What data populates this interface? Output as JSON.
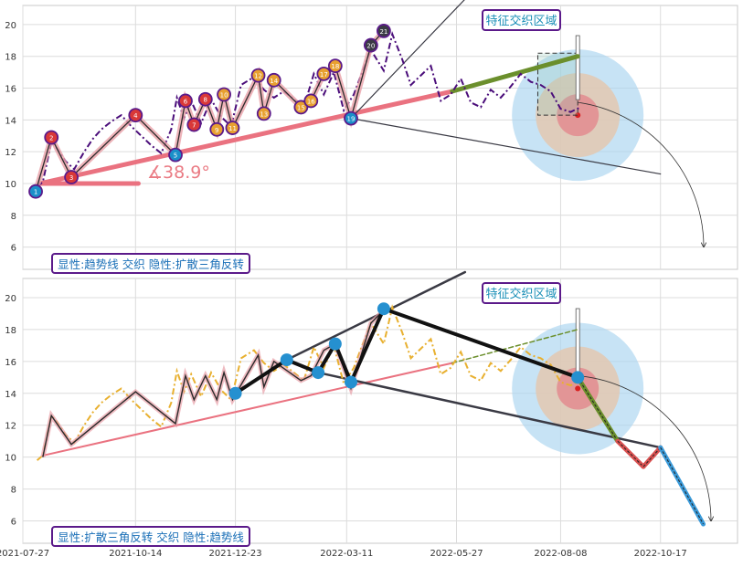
{
  "chart_data": [
    {
      "type": "line",
      "panel": "top",
      "xlim": [
        "2021-07-27",
        "2022-12-10"
      ],
      "ylim": [
        4.6,
        21.2
      ],
      "yticks": [
        6,
        8,
        10,
        12,
        14,
        16,
        18,
        20
      ],
      "grid": true,
      "zone_label": "特征交织区域",
      "pattern_label": "显性:趋势线 交织 隐性:扩散三角反转",
      "angle_label": "∡38.9°",
      "series": [
        {
          "kind": "price",
          "x": [
            "2021-08-06",
            "2021-08-10",
            "2021-08-16",
            "2021-08-20",
            "2021-08-26",
            "2021-09-01",
            "2021-09-08",
            "2021-09-14",
            "2021-09-20",
            "2021-09-27",
            "2021-10-04",
            "2021-10-11",
            "2021-10-18",
            "2021-10-25",
            "2021-11-01",
            "2021-11-08",
            "2021-11-12",
            "2021-11-17",
            "2021-11-22",
            "2021-11-29",
            "2021-12-06",
            "2021-12-13",
            "2021-12-20",
            "2021-12-27",
            "2022-01-05",
            "2022-01-12",
            "2022-01-19",
            "2022-01-26",
            "2022-02-09",
            "2022-02-16",
            "2022-02-23",
            "2022-03-02",
            "2022-03-09",
            "2022-03-16",
            "2022-03-21",
            "2022-03-28",
            "2022-04-06",
            "2022-04-12",
            "2022-04-19",
            "2022-04-25",
            "2022-05-02",
            "2022-05-09",
            "2022-05-16",
            "2022-05-23",
            "2022-05-30",
            "2022-06-06",
            "2022-06-13",
            "2022-06-20",
            "2022-06-27",
            "2022-07-04",
            "2022-07-11",
            "2022-07-18",
            "2022-07-25",
            "2022-08-01",
            "2022-08-08",
            "2022-08-15",
            "2022-08-22"
          ],
          "y": [
            9.8,
            10.1,
            12.6,
            12.2,
            11.4,
            10.9,
            12.0,
            12.8,
            13.4,
            13.9,
            14.3,
            13.6,
            13.0,
            12.4,
            11.9,
            13.4,
            15.4,
            14.1,
            15.2,
            13.8,
            15.3,
            14.2,
            13.6,
            16.2,
            16.7,
            15.9,
            15.4,
            15.8,
            14.8,
            16.9,
            15.6,
            17.0,
            14.6,
            15.6,
            16.8,
            18.4,
            17.1,
            19.4,
            17.8,
            16.2,
            16.8,
            17.4,
            15.2,
            15.6,
            16.6,
            15.1,
            14.8,
            15.9,
            15.4,
            16.1,
            16.9,
            16.4,
            16.2,
            15.8,
            14.7,
            14.5,
            14.8
          ]
        },
        {
          "kind": "pivots",
          "x": [
            "2021-08-05",
            "2021-08-16",
            "2021-08-30",
            "2021-10-14",
            "2021-11-11",
            "2021-11-18",
            "2021-11-24",
            "2021-12-02",
            "2021-12-10",
            "2021-12-15",
            "2021-12-21",
            "2022-01-08",
            "2022-01-12",
            "2022-01-19",
            "2022-02-07",
            "2022-02-14",
            "2022-02-23",
            "2022-03-03",
            "2022-03-14",
            "2022-03-28",
            "2022-04-06"
          ],
          "y": [
            9.5,
            12.9,
            10.4,
            14.3,
            11.8,
            15.2,
            13.7,
            15.3,
            13.4,
            15.6,
            13.5,
            16.8,
            14.4,
            16.5,
            14.8,
            15.2,
            16.9,
            17.4,
            14.1,
            18.7,
            19.6
          ],
          "labels": [
            "1",
            "2",
            "3",
            "4",
            "5",
            "6",
            "7",
            "8",
            "9",
            "10",
            "11",
            "12",
            "13",
            "14",
            "15",
            "16",
            "17",
            "18",
            "19",
            "20",
            "21"
          ]
        },
        {
          "kind": "trendline-support",
          "x": [
            "2021-08-08",
            "2022-05-24"
          ],
          "y": [
            10.0,
            15.8
          ]
        },
        {
          "kind": "trendline-projection",
          "x": [
            "2022-05-24",
            "2022-08-20"
          ],
          "y": [
            15.8,
            18.0
          ]
        },
        {
          "kind": "flat-base",
          "x": [
            "2021-08-08",
            "2021-10-16"
          ],
          "y": [
            10.0,
            10.0
          ]
        },
        {
          "kind": "triangle-upper",
          "x": [
            "2022-03-14",
            "2022-06-02"
          ],
          "y": [
            14.1,
            21.6
          ]
        },
        {
          "kind": "triangle-lower",
          "x": [
            "2022-03-14",
            "2022-10-17"
          ],
          "y": [
            14.1,
            10.6
          ]
        }
      ],
      "focus_zone": {
        "x_range": [
          "2022-07-23",
          "2022-08-20"
        ],
        "y_range": [
          14.3,
          18.2
        ],
        "target": {
          "x": "2022-08-20",
          "y": 14.3
        }
      }
    },
    {
      "type": "line",
      "panel": "bottom",
      "xlim": [
        "2021-07-27",
        "2022-12-10"
      ],
      "ylim": [
        4.6,
        21.2
      ],
      "yticks": [
        6,
        8,
        10,
        12,
        14,
        16,
        18,
        20
      ],
      "xticks": [
        "2021-07-27",
        "2021-10-14",
        "2021-12-23",
        "2022-03-11",
        "2022-05-27",
        "2022-08-08",
        "2022-10-17"
      ],
      "grid": true,
      "zone_label": "特征交织区域",
      "pattern_label": "显性:扩散三角反转 交织 隐性:趋势线",
      "series": [
        {
          "kind": "price",
          "x": [
            "2021-08-06",
            "2021-08-10",
            "2021-08-16",
            "2021-08-20",
            "2021-08-26",
            "2021-09-01",
            "2021-09-08",
            "2021-09-14",
            "2021-09-20",
            "2021-09-27",
            "2021-10-04",
            "2021-10-11",
            "2021-10-18",
            "2021-10-25",
            "2021-11-01",
            "2021-11-08",
            "2021-11-12",
            "2021-11-17",
            "2021-11-22",
            "2021-11-29",
            "2021-12-06",
            "2021-12-13",
            "2021-12-20",
            "2021-12-27",
            "2022-01-05",
            "2022-01-12",
            "2022-01-19",
            "2022-01-26",
            "2022-02-09",
            "2022-02-16",
            "2022-02-23",
            "2022-03-02",
            "2022-03-09",
            "2022-03-16",
            "2022-03-21",
            "2022-03-28",
            "2022-04-06",
            "2022-04-12",
            "2022-04-19",
            "2022-04-25",
            "2022-05-02",
            "2022-05-09",
            "2022-05-16",
            "2022-05-23",
            "2022-05-30",
            "2022-06-06",
            "2022-06-13",
            "2022-06-20",
            "2022-06-27",
            "2022-07-04",
            "2022-07-11",
            "2022-07-18",
            "2022-07-25",
            "2022-08-01",
            "2022-08-08",
            "2022-08-15",
            "2022-08-22"
          ],
          "y": [
            9.8,
            10.1,
            12.6,
            12.2,
            11.4,
            10.9,
            12.0,
            12.8,
            13.4,
            13.9,
            14.3,
            13.6,
            13.0,
            12.4,
            11.9,
            13.4,
            15.4,
            14.1,
            15.2,
            13.8,
            15.3,
            14.2,
            13.6,
            16.2,
            16.7,
            15.9,
            15.4,
            15.8,
            14.8,
            16.9,
            15.6,
            17.0,
            14.6,
            15.6,
            16.8,
            18.4,
            17.1,
            19.4,
            17.8,
            16.2,
            16.8,
            17.4,
            15.2,
            15.6,
            16.6,
            15.1,
            14.8,
            15.9,
            15.4,
            16.1,
            16.9,
            16.4,
            16.2,
            15.8,
            14.7,
            14.5,
            14.8
          ]
        },
        {
          "kind": "zigzag",
          "x": [
            "2021-08-10",
            "2021-08-16",
            "2021-08-30",
            "2021-10-14",
            "2021-11-11",
            "2021-11-18",
            "2021-11-24",
            "2021-12-02",
            "2021-12-10",
            "2021-12-15",
            "2021-12-21",
            "2022-01-08",
            "2022-01-12",
            "2022-01-19",
            "2022-02-07",
            "2022-02-14",
            "2022-02-23",
            "2022-03-03",
            "2022-03-14",
            "2022-03-28",
            "2022-04-06"
          ],
          "y": [
            10.0,
            12.6,
            10.8,
            14.1,
            12.1,
            15.1,
            13.6,
            15.1,
            13.6,
            15.3,
            13.6,
            16.4,
            14.4,
            16.0,
            14.8,
            15.1,
            16.7,
            17.1,
            14.3,
            18.4,
            19.2
          ]
        },
        {
          "kind": "pattern-pivots",
          "x": [
            "2021-12-23",
            "2022-01-28",
            "2022-02-19",
            "2022-03-03",
            "2022-03-14",
            "2022-04-06",
            "2022-08-20"
          ],
          "y": [
            14.0,
            16.1,
            15.3,
            17.1,
            14.7,
            19.3,
            15.0
          ]
        },
        {
          "kind": "trendline-support",
          "x": [
            "2021-08-10",
            "2022-05-24"
          ],
          "y": [
            10.1,
            15.9
          ]
        },
        {
          "kind": "trendline-projection",
          "x": [
            "2022-05-24",
            "2022-08-20"
          ],
          "y": [
            15.9,
            18.0
          ]
        },
        {
          "kind": "triangle-upper",
          "x": [
            "2022-01-28",
            "2022-06-02"
          ],
          "y": [
            16.1,
            21.6
          ]
        },
        {
          "kind": "triangle-lower",
          "x": [
            "2022-02-19",
            "2022-10-17"
          ],
          "y": [
            15.3,
            10.6
          ]
        },
        {
          "kind": "projection-path",
          "x": [
            "2022-08-20",
            "2022-09-17",
            "2022-10-05",
            "2022-10-17",
            "2022-11-16"
          ],
          "y": [
            15.0,
            11.0,
            9.4,
            10.6,
            5.8
          ]
        }
      ],
      "focus_zone": {
        "x_range": [
          "2022-07-23",
          "2022-08-20"
        ],
        "y_range": [
          14.3,
          18.2
        ],
        "target": {
          "x": "2022-08-20",
          "y": 14.3
        }
      }
    }
  ]
}
